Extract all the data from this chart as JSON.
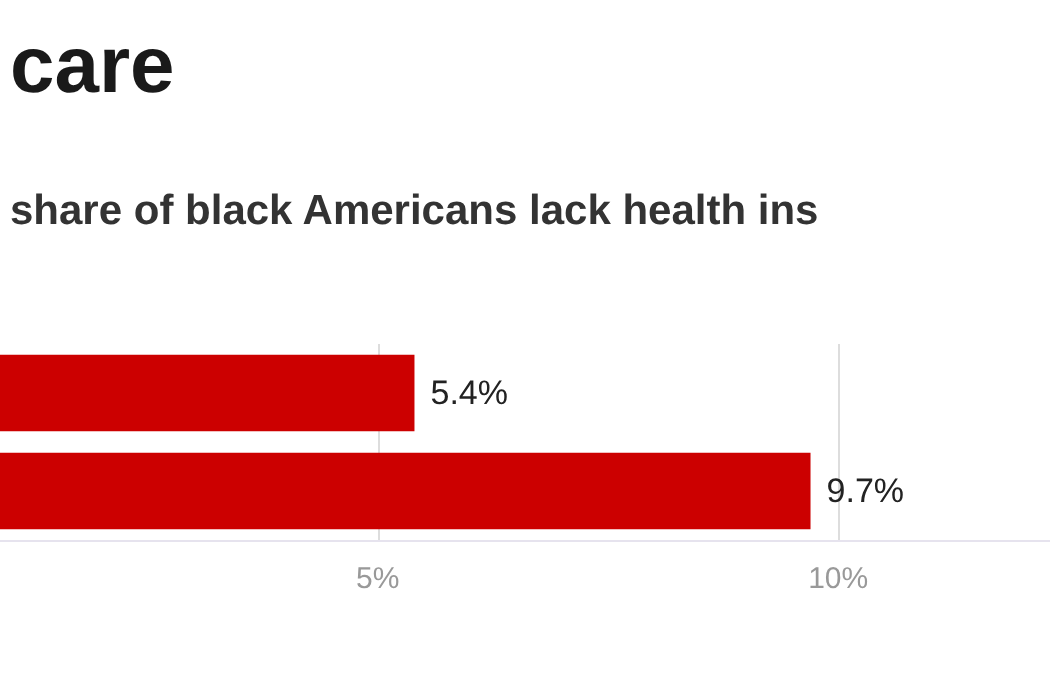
{
  "chart_data": {
    "type": "bar",
    "orientation": "horizontal",
    "title": "care",
    "subtitle": "share of black Americans lack health ins",
    "categories": [
      null,
      null
    ],
    "values": [
      5.4,
      9.7
    ],
    "color": "#cc0000",
    "value_labels": [
      "5.4%",
      "9.7%"
    ],
    "xlim": [
      0.9,
      12.3
    ],
    "xticks": [
      {
        "value": 5,
        "label": "5%"
      },
      {
        "value": 10,
        "label": "10%"
      }
    ],
    "grid": "x"
  }
}
